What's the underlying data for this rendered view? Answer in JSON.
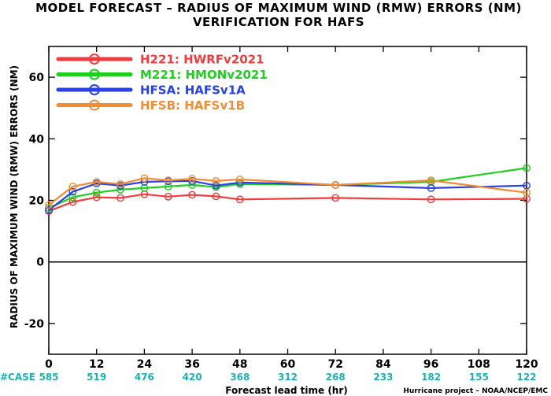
{
  "title_line1": "MODEL FORECAST – RADIUS OF MAXIMUM WIND (RMW) ERRORS (NM)",
  "title_line2": "VERIFICATION FOR HAFS",
  "credit": "Hurricane project – NOAA/NCEP/EMC",
  "case_label": "#CASE",
  "case_counts": [
    "585",
    "519",
    "476",
    "420",
    "368",
    "312",
    "268",
    "233",
    "182",
    "155",
    "122"
  ],
  "colors": {
    "case": "#19b3b3"
  },
  "chart_data": {
    "type": "line",
    "title": "MODEL FORECAST – RADIUS OF MAXIMUM WIND (RMW) ERRORS (NM)",
    "subtitle": "VERIFICATION FOR HAFS",
    "xlabel": "Forecast lead time (hr)",
    "ylabel": "RADIUS OF MAXIMUM WIND (RMW) ERRORS (NM)",
    "xlim": [
      0,
      120
    ],
    "ylim": [
      -30,
      70
    ],
    "xticks": [
      0,
      12,
      24,
      36,
      48,
      60,
      72,
      84,
      96,
      108,
      120
    ],
    "yticks": [
      -20,
      0,
      20,
      40,
      60
    ],
    "zero_line": true,
    "legend_position": "top-left",
    "series": [
      {
        "name": "H221: HWRFv2021",
        "color": "#f03c3c",
        "x": [
          0,
          6,
          12,
          18,
          24,
          30,
          36,
          42,
          48,
          72,
          96,
          120
        ],
        "y": [
          16.5,
          19.5,
          21.0,
          20.8,
          22.0,
          21.2,
          21.8,
          21.3,
          20.3,
          20.8,
          20.3,
          20.5
        ]
      },
      {
        "name": "M221: HMONv2021",
        "color": "#1ecf1e",
        "x": [
          0,
          6,
          12,
          18,
          24,
          30,
          36,
          42,
          48,
          72,
          96,
          120
        ],
        "y": [
          17.5,
          21.0,
          22.5,
          23.5,
          24.0,
          24.5,
          25.0,
          24.3,
          25.3,
          25.0,
          26.0,
          30.5
        ]
      },
      {
        "name": "HFSA: HAFSv1A",
        "color": "#2840e6",
        "x": [
          0,
          6,
          12,
          18,
          24,
          30,
          36,
          42,
          48,
          72,
          96,
          120
        ],
        "y": [
          16.8,
          22.8,
          25.5,
          24.8,
          26.0,
          26.2,
          26.3,
          24.8,
          25.8,
          25.0,
          24.0,
          24.8
        ]
      },
      {
        "name": "HFSB: HAFSv1B",
        "color": "#f08c32",
        "x": [
          0,
          6,
          12,
          18,
          24,
          30,
          36,
          42,
          48,
          72,
          96,
          120
        ],
        "y": [
          18.5,
          24.5,
          26.0,
          25.3,
          27.2,
          26.5,
          27.0,
          26.3,
          26.8,
          25.0,
          26.5,
          22.5
        ]
      }
    ]
  }
}
